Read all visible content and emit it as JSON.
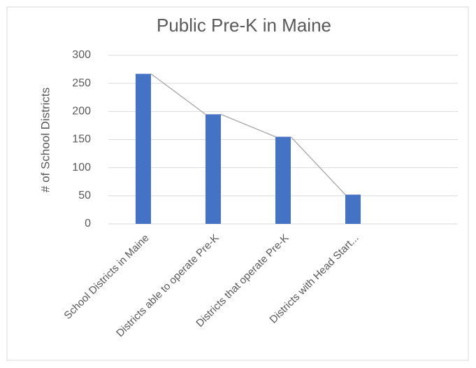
{
  "chart_data": {
    "type": "bar",
    "title": "Public Pre-K in Maine",
    "y_label": "# of School Districts",
    "categories": [
      "School Districts in Maine",
      "Districts able to operate Pre-K",
      "Districts that operate Pre-K",
      "Districts with Head Start...",
      null
    ],
    "values": [
      267,
      195,
      155,
      52,
      null
    ],
    "color": "#4472c4",
    "ylim": [
      0,
      300
    ],
    "yticks": [
      0,
      50,
      100,
      150,
      200,
      250,
      300
    ],
    "grid": true
  }
}
